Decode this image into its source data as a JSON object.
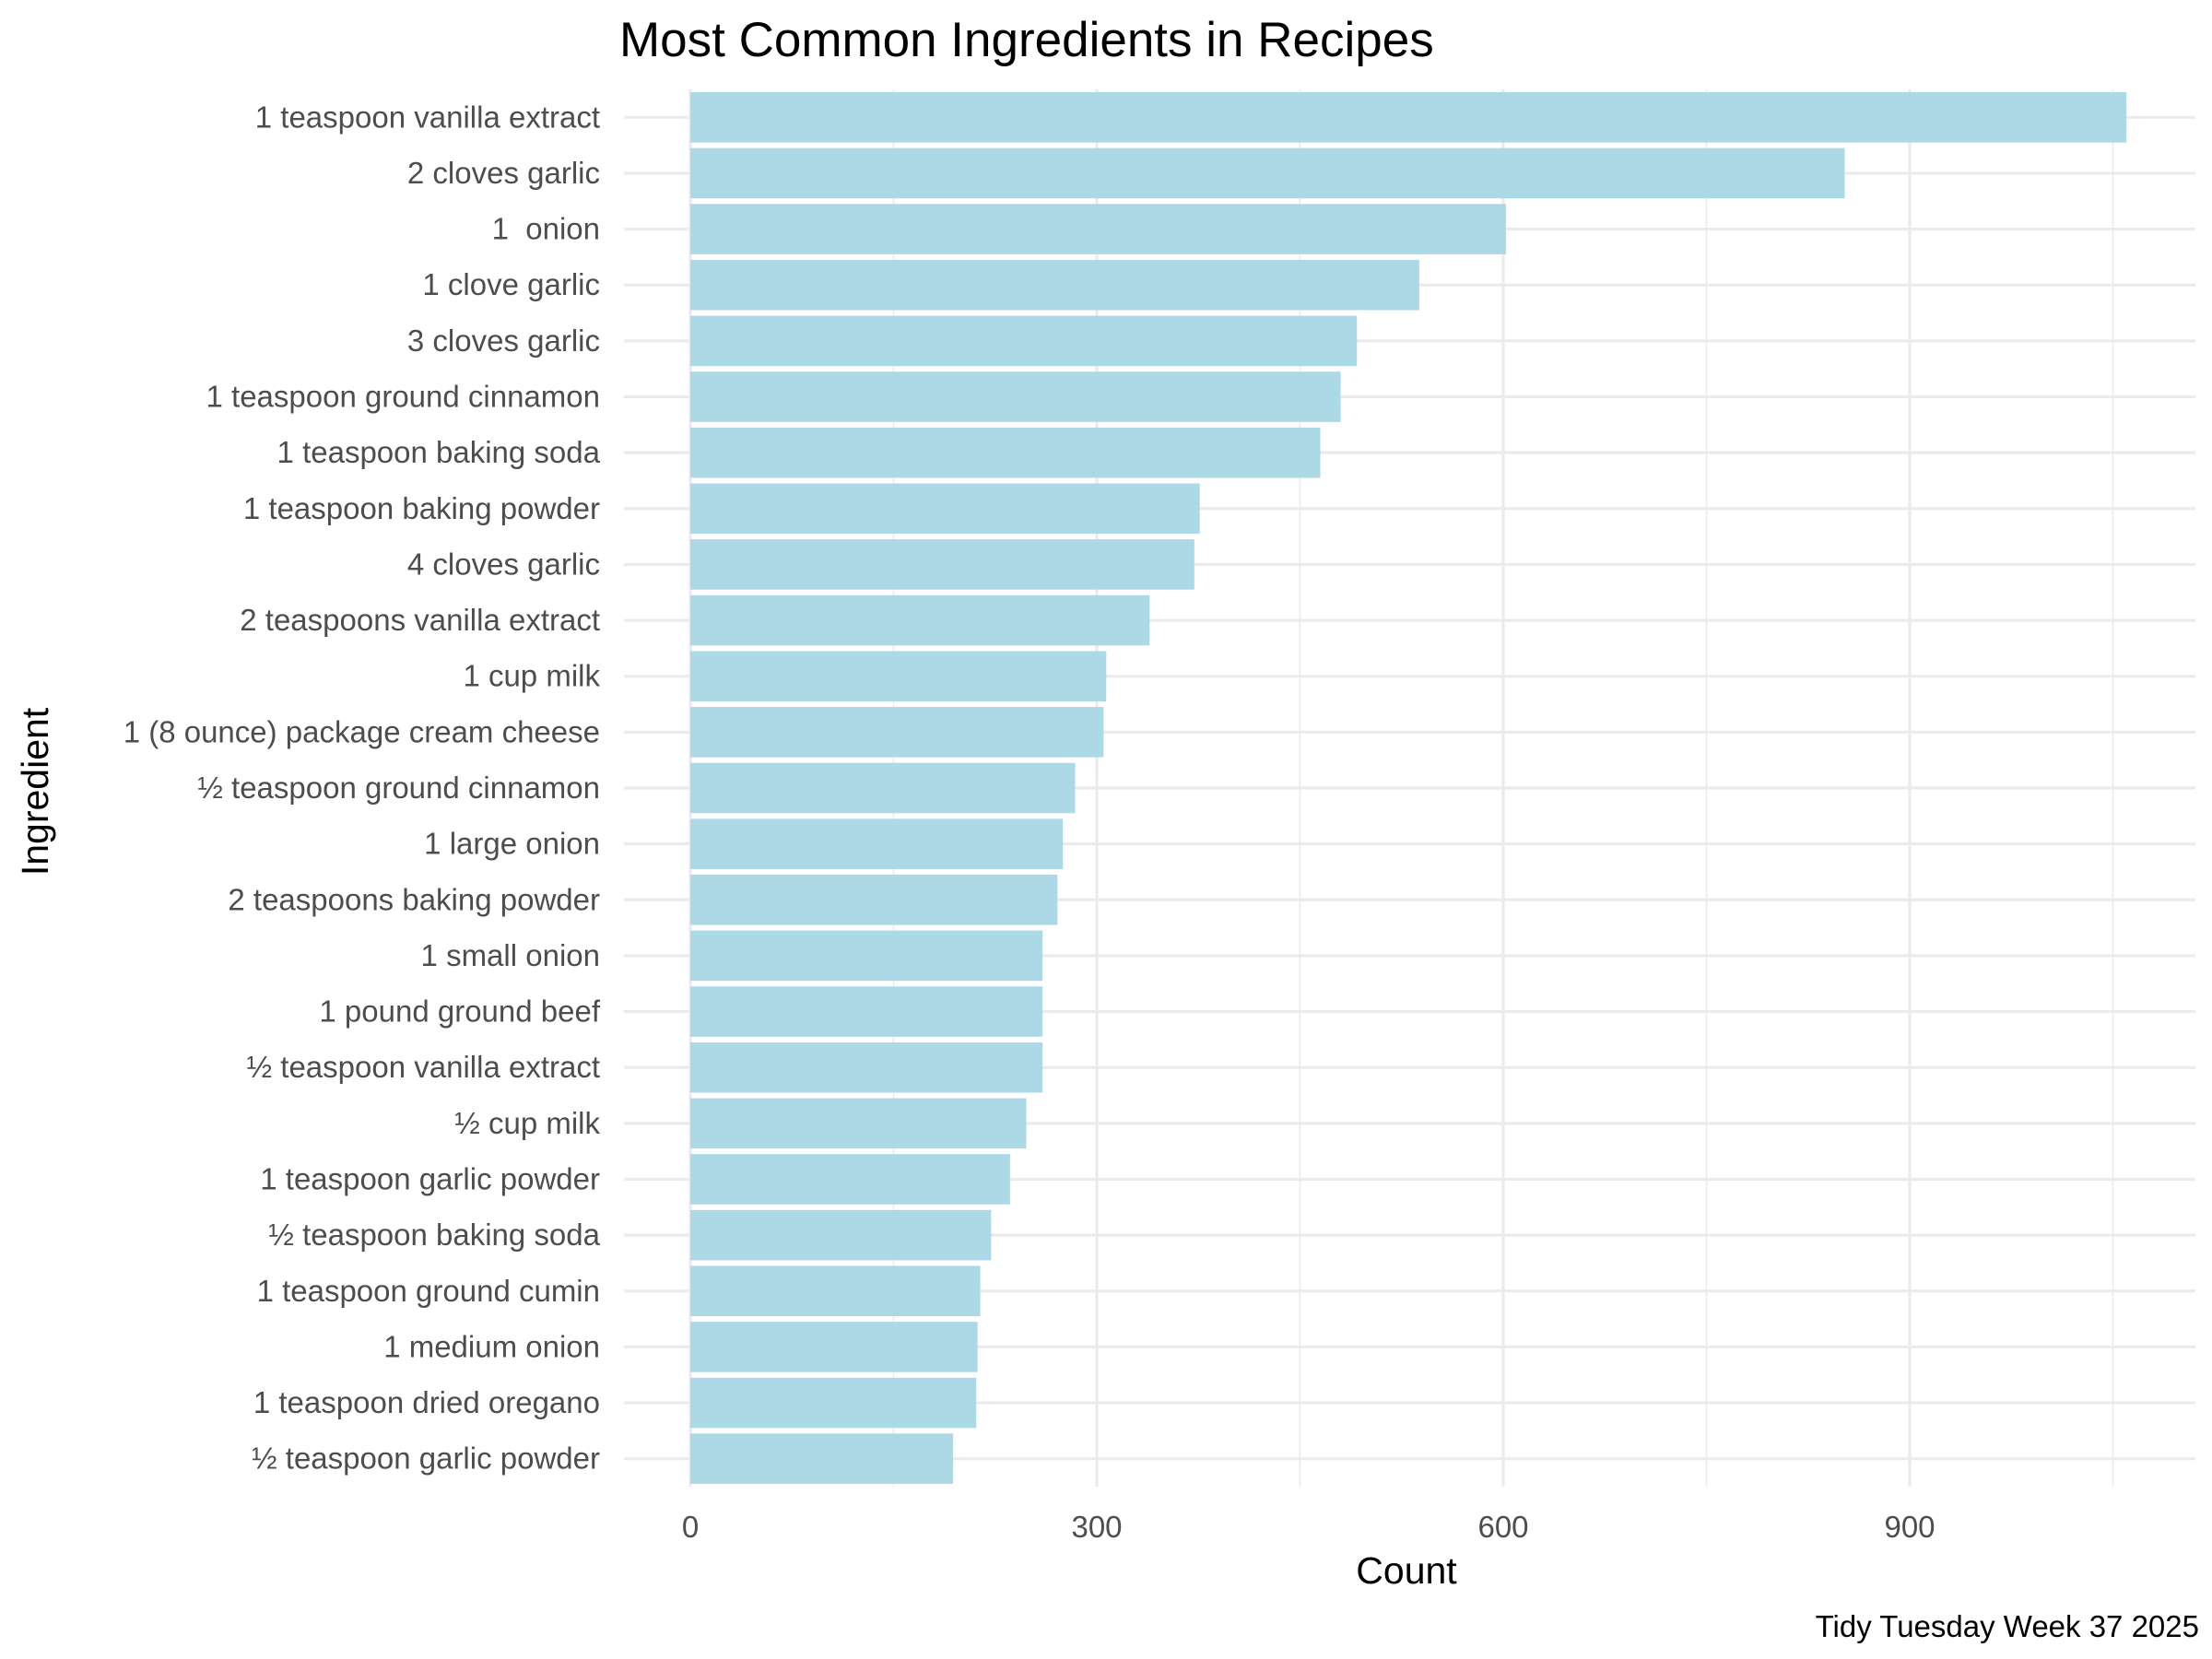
{
  "chart_data": {
    "type": "bar",
    "orientation": "horizontal",
    "title": "Most Common Ingredients in Recipes",
    "xlabel": "Count",
    "ylabel": "Ingredient",
    "caption": "Tidy Tuesday Week 37 2025",
    "xlim": [
      0,
      1100
    ],
    "xticks": [
      0,
      300,
      600,
      900
    ],
    "grid": true,
    "bar_color": "#add8e6",
    "categories": [
      "1 teaspoon vanilla extract",
      "2 cloves garlic",
      "1  onion",
      "1 clove garlic",
      "3 cloves garlic",
      "1 teaspoon ground cinnamon",
      "1 teaspoon baking soda",
      "1 teaspoon baking powder",
      "4 cloves garlic",
      "2 teaspoons vanilla extract",
      "1 cup milk",
      "1 (8 ounce) package cream cheese",
      "½ teaspoon ground cinnamon",
      "1 large onion",
      "2 teaspoons baking powder",
      "1 small onion",
      "1 pound ground beef",
      "½ teaspoon vanilla extract",
      "½ cup milk",
      "1 teaspoon garlic powder",
      "½ teaspoon baking soda",
      "1 teaspoon ground cumin",
      "1 medium onion",
      "1 teaspoon dried oregano",
      "½ teaspoon garlic powder"
    ],
    "values": [
      1060,
      852,
      602,
      538,
      492,
      480,
      465,
      376,
      372,
      339,
      307,
      305,
      284,
      275,
      271,
      260,
      260,
      260,
      248,
      236,
      222,
      214,
      212,
      211,
      194
    ]
  }
}
